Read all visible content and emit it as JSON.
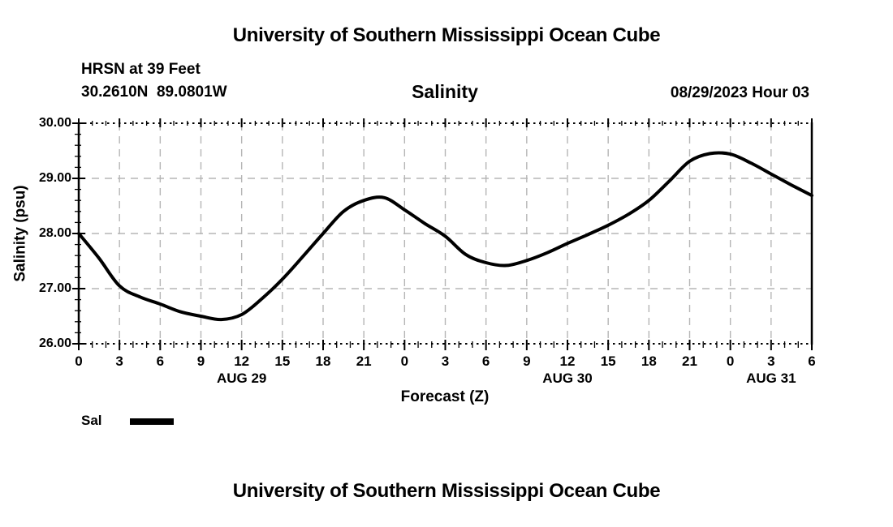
{
  "header": {
    "main_title": "University of Southern Mississippi Ocean Cube",
    "station_line": "HRSN at 39 Feet",
    "coords_line": "30.2610N  89.0801W",
    "panel_title": "Salinity",
    "run_label": "08/29/2023 Hour 03"
  },
  "axis": {
    "ylabel": "Salinity (psu)",
    "xlabel": "Forecast (Z)"
  },
  "legend": {
    "label": "Sal",
    "swatch_color": "#000000"
  },
  "footer": {
    "next_panel_title": "University of Southern Mississippi Ocean Cube"
  },
  "chart_data": {
    "type": "line",
    "title": "Salinity",
    "station": "HRSN at 39 Feet",
    "location": "30.2610N  89.0801W",
    "run": "08/29/2023 Hour 03",
    "xlabel": "Forecast (Z)",
    "ylabel": "Salinity (psu)",
    "xlim": [
      0,
      54
    ],
    "ylim": [
      26,
      30
    ],
    "grid": true,
    "grid_color": "#b5b5b5",
    "line_color": "#000000",
    "x": [
      0,
      1.5,
      3,
      4.5,
      6,
      7.5,
      9,
      10.5,
      12,
      13.5,
      15,
      16.5,
      18,
      19.5,
      21,
      22.5,
      24,
      25.5,
      27,
      28.5,
      30,
      31.5,
      33,
      34.5,
      36,
      37.5,
      39,
      40.5,
      42,
      43.5,
      45,
      46.5,
      48,
      49.5,
      51,
      52.5,
      54
    ],
    "series": [
      {
        "name": "Sal",
        "color": "#000000",
        "values": [
          28.0,
          27.55,
          27.05,
          26.85,
          26.72,
          26.58,
          26.5,
          26.44,
          26.53,
          26.82,
          27.17,
          27.58,
          28.0,
          28.4,
          28.6,
          28.65,
          28.43,
          28.18,
          27.95,
          27.62,
          27.47,
          27.42,
          27.51,
          27.65,
          27.82,
          27.98,
          28.15,
          28.35,
          28.6,
          28.95,
          29.31,
          29.45,
          29.44,
          29.28,
          29.08,
          28.88,
          28.69
        ]
      }
    ],
    "xticks": [
      {
        "hour": 0,
        "label": "0"
      },
      {
        "hour": 3,
        "label": "3"
      },
      {
        "hour": 6,
        "label": "6"
      },
      {
        "hour": 9,
        "label": "9"
      },
      {
        "hour": 12,
        "label": "12"
      },
      {
        "hour": 15,
        "label": "15"
      },
      {
        "hour": 18,
        "label": "18"
      },
      {
        "hour": 21,
        "label": "21"
      },
      {
        "hour": 24,
        "label": "0"
      },
      {
        "hour": 27,
        "label": "3"
      },
      {
        "hour": 30,
        "label": "6"
      },
      {
        "hour": 33,
        "label": "9"
      },
      {
        "hour": 36,
        "label": "12"
      },
      {
        "hour": 39,
        "label": "15"
      },
      {
        "hour": 42,
        "label": "18"
      },
      {
        "hour": 45,
        "label": "21"
      },
      {
        "hour": 48,
        "label": "0"
      },
      {
        "hour": 51,
        "label": "3"
      },
      {
        "hour": 54,
        "label": "6"
      }
    ],
    "yticks": [
      {
        "value": 26,
        "label": "26.00"
      },
      {
        "value": 27,
        "label": "27.00"
      },
      {
        "value": 28,
        "label": "28.00"
      },
      {
        "value": 29,
        "label": "29.00"
      },
      {
        "value": 30,
        "label": "30.00"
      }
    ],
    "minor_x_step": 1,
    "minor_y_step": 0.2,
    "day_labels": [
      {
        "label": "AUG 29",
        "hour": 12
      },
      {
        "label": "AUG 30",
        "hour": 36
      },
      {
        "label": "AUG 31",
        "hour": 51
      }
    ],
    "legend_position": "bottom-left"
  }
}
